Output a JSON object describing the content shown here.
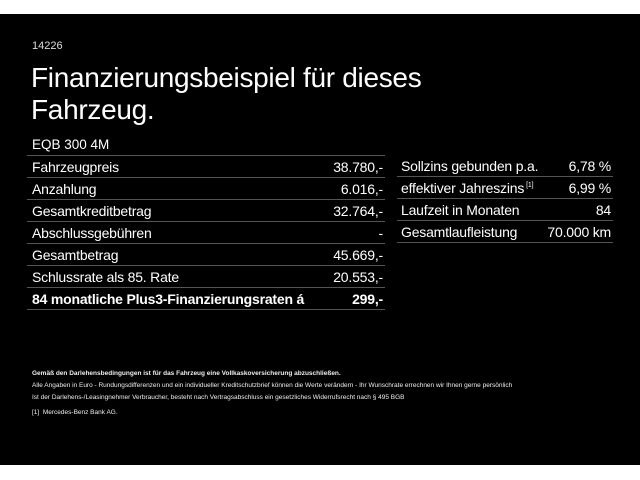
{
  "code": "14226",
  "title_line1": "Finanzierungsbeispiel für dieses",
  "title_line2": "Fahrzeug.",
  "model": "EQB 300 4M",
  "left_rows": [
    {
      "label": "Fahrzeugpreis",
      "value": "38.780,-"
    },
    {
      "label": "Anzahlung",
      "value": "6.016,-"
    },
    {
      "label": "Gesamtkreditbetrag",
      "value": "32.764,-"
    },
    {
      "label": "Abschlussgebühren",
      "value": "-"
    },
    {
      "label": "Gesamtbetrag",
      "value": "45.669,-"
    },
    {
      "label": "Schlussrate als 85. Rate",
      "value": "20.553,-"
    },
    {
      "label": "84 monatliche Plus3-Finanzierungsraten á",
      "value": "299,-"
    }
  ],
  "right_rows": [
    {
      "label": "Sollzins gebunden p.a.",
      "value": "6,78 %"
    },
    {
      "label": "effektiver Jahreszins",
      "sup": "[1]",
      "value": "6,99 %"
    },
    {
      "label": "Laufzeit in Monaten",
      "value": "84"
    },
    {
      "label": "Gesamtlaufleistung",
      "value": "70.000 km"
    }
  ],
  "notes": {
    "bold": "Gemäß den Darlehensbedingungen ist für das Fahrzeug eine Vollkaskoversicherung abzuschließen.",
    "line1": "Alle Angaben in Euro - Rundungsdifferenzen und ein individueller Kreditschutzbrief können die Werte verändern - Ihr Wunschrate errechnen wir Ihnen gerne persönlich",
    "line2": "Ist der Darlehens-/Leasingnehmer Verbraucher, besteht nach Vertragsabschluss ein gesetzliches Widerrufsrecht nach § 495 BGB",
    "footnote_mark": "[1]",
    "footnote": "Mercedes-Benz Bank AG."
  }
}
